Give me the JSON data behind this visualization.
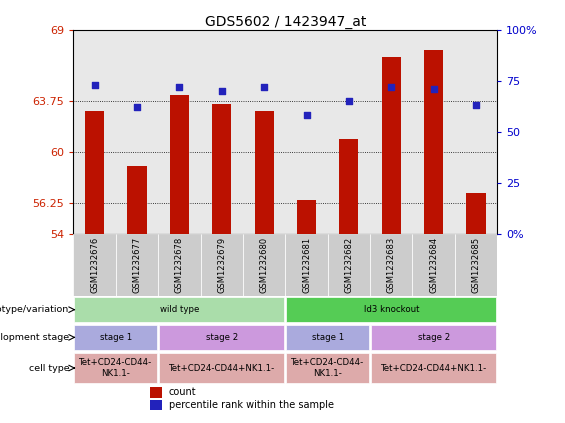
{
  "title": "GDS5602 / 1423947_at",
  "samples": [
    "GSM1232676",
    "GSM1232677",
    "GSM1232678",
    "GSM1232679",
    "GSM1232680",
    "GSM1232681",
    "GSM1232682",
    "GSM1232683",
    "GSM1232684",
    "GSM1232685"
  ],
  "bar_values": [
    63.0,
    59.0,
    64.2,
    63.5,
    63.0,
    56.5,
    61.0,
    67.0,
    67.5,
    57.0
  ],
  "bar_bottom": 54,
  "blue_percentile": [
    73,
    62,
    72,
    70,
    72,
    58,
    65,
    72,
    71,
    63
  ],
  "ylim_left": [
    54,
    69
  ],
  "ylim_right": [
    0,
    100
  ],
  "yticks_left": [
    54,
    56.25,
    60,
    63.75,
    69
  ],
  "yticks_right": [
    0,
    25,
    50,
    75,
    100
  ],
  "bar_color": "#bb1100",
  "blue_color": "#2222bb",
  "left_tick_color": "#cc2200",
  "right_tick_color": "#0000cc",
  "plot_bg": "#e8e8e8",
  "annotation_rows": [
    {
      "label": "genotype/variation",
      "groups": [
        {
          "text": "wild type",
          "span": 5,
          "color": "#aaddaa"
        },
        {
          "text": "ld3 knockout",
          "span": 5,
          "color": "#55cc55"
        }
      ]
    },
    {
      "label": "development stage",
      "groups": [
        {
          "text": "stage 1",
          "span": 2,
          "color": "#aaaadd"
        },
        {
          "text": "stage 2",
          "span": 3,
          "color": "#cc99dd"
        },
        {
          "text": "stage 1",
          "span": 2,
          "color": "#aaaadd"
        },
        {
          "text": "stage 2",
          "span": 3,
          "color": "#cc99dd"
        }
      ]
    },
    {
      "label": "cell type",
      "groups": [
        {
          "text": "Tet+CD24-CD44-\nNK1.1-",
          "span": 2,
          "color": "#ddaaaa"
        },
        {
          "text": "Tet+CD24-CD44+NK1.1-",
          "span": 3,
          "color": "#ddaaaa"
        },
        {
          "text": "Tet+CD24-CD44-\nNK1.1-",
          "span": 2,
          "color": "#ddaaaa"
        },
        {
          "text": "Tet+CD24-CD44+NK1.1-",
          "span": 3,
          "color": "#ddaaaa"
        }
      ]
    }
  ]
}
